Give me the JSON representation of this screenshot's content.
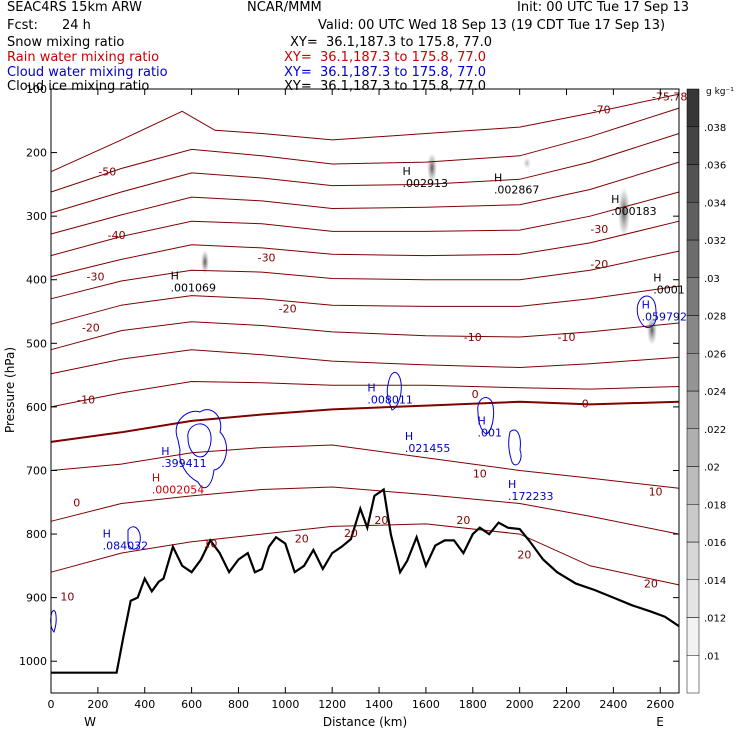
{
  "header": {
    "model": "SEAC4RS 15km ARW",
    "center": "NCAR/MMM",
    "init": "Init: 00 UTC Tue 17 Sep 13",
    "fcst_label": "Fcst:",
    "fcst_value": "24 h",
    "valid": "Valid: 00 UTC Wed 18 Sep 13 (19 CDT Tue 17 Sep 13)",
    "fields": [
      {
        "name": "Snow mixing ratio",
        "xy": "XY=  36.1,187.3 to 175.8, 77.0",
        "color": "#000000"
      },
      {
        "name": "Rain water mixing ratio",
        "xy": "XY=  36.1,187.3 to 175.8, 77.0",
        "color": "#cc0000"
      },
      {
        "name": "Cloud water mixing ratio",
        "xy": "XY=  36.1,187.3 to 175.8, 77.0",
        "color": "#0000cc"
      },
      {
        "name": "Cloud ice mixing ratio",
        "xy": "XY=  36.1,187.3 to 175.8, 77.0",
        "color": "#000000"
      }
    ]
  },
  "chart_data": {
    "type": "cross-section",
    "xlabel": "Distance (km)",
    "ylabel": "Pressure (hPa)",
    "xlim": [
      0,
      2680
    ],
    "ylim": [
      1050,
      100
    ],
    "x_ticks": [
      0,
      200,
      400,
      600,
      800,
      1000,
      1200,
      1400,
      1600,
      1800,
      2000,
      2200,
      2400,
      2600
    ],
    "y_ticks": [
      200,
      300,
      400,
      500,
      600,
      700,
      800,
      900,
      1000
    ],
    "y_label_100": "100",
    "endpoints": {
      "left": "W",
      "right": "E"
    },
    "colorbar": {
      "unit": "g kg⁻¹",
      "ticks": [
        ".01",
        ".012",
        ".014",
        ".016",
        ".018",
        ".02",
        ".022",
        ".024",
        ".026",
        ".028",
        ".03",
        ".032",
        ".034",
        ".036",
        ".038"
      ]
    },
    "terrain": [
      [
        0,
        1018
      ],
      [
        280,
        1018
      ],
      [
        310,
        960
      ],
      [
        340,
        905
      ],
      [
        370,
        900
      ],
      [
        400,
        870
      ],
      [
        430,
        890
      ],
      [
        460,
        875
      ],
      [
        480,
        870
      ],
      [
        520,
        820
      ],
      [
        560,
        850
      ],
      [
        600,
        860
      ],
      [
        640,
        840
      ],
      [
        680,
        810
      ],
      [
        720,
        830
      ],
      [
        760,
        860
      ],
      [
        800,
        840
      ],
      [
        840,
        830
      ],
      [
        870,
        860
      ],
      [
        900,
        855
      ],
      [
        930,
        820
      ],
      [
        960,
        805
      ],
      [
        1000,
        815
      ],
      [
        1040,
        860
      ],
      [
        1080,
        850
      ],
      [
        1120,
        825
      ],
      [
        1160,
        855
      ],
      [
        1200,
        830
      ],
      [
        1240,
        820
      ],
      [
        1280,
        808
      ],
      [
        1320,
        760
      ],
      [
        1350,
        790
      ],
      [
        1380,
        740
      ],
      [
        1420,
        730
      ],
      [
        1450,
        800
      ],
      [
        1490,
        860
      ],
      [
        1520,
        842
      ],
      [
        1560,
        805
      ],
      [
        1600,
        850
      ],
      [
        1640,
        818
      ],
      [
        1680,
        810
      ],
      [
        1720,
        810
      ],
      [
        1760,
        830
      ],
      [
        1800,
        800
      ],
      [
        1830,
        790
      ],
      [
        1870,
        800
      ],
      [
        1910,
        782
      ],
      [
        1950,
        790
      ],
      [
        2000,
        792
      ],
      [
        2040,
        810
      ],
      [
        2100,
        840
      ],
      [
        2160,
        860
      ],
      [
        2240,
        878
      ],
      [
        2320,
        888
      ],
      [
        2400,
        900
      ],
      [
        2480,
        912
      ],
      [
        2560,
        922
      ],
      [
        2620,
        930
      ],
      [
        2680,
        945
      ]
    ],
    "temperature_labels": [
      {
        "x": 2640,
        "p": 112,
        "t": "-75.78"
      },
      {
        "x": 2350,
        "p": 132,
        "t": "-70"
      },
      {
        "x": 240,
        "p": 230,
        "t": "-50"
      },
      {
        "x": 2340,
        "p": 320,
        "t": "-30"
      },
      {
        "x": 280,
        "p": 330,
        "t": "-40"
      },
      {
        "x": 920,
        "p": 365,
        "t": "-30"
      },
      {
        "x": 2340,
        "p": 375,
        "t": "-20"
      },
      {
        "x": 190,
        "p": 395,
        "t": "-30"
      },
      {
        "x": 1010,
        "p": 445,
        "t": "-20"
      },
      {
        "x": 1800,
        "p": 490,
        "t": "-10"
      },
      {
        "x": 2200,
        "p": 490,
        "t": "-10"
      },
      {
        "x": 170,
        "p": 475,
        "t": "-20"
      },
      {
        "x": 150,
        "p": 588,
        "t": "-10"
      },
      {
        "x": 1810,
        "p": 580,
        "t": "0"
      },
      {
        "x": 2280,
        "p": 595,
        "t": "0"
      },
      {
        "x": 110,
        "p": 750,
        "t": "0"
      },
      {
        "x": 1830,
        "p": 705,
        "t": "10"
      },
      {
        "x": 2580,
        "p": 733,
        "t": "10"
      },
      {
        "x": 680,
        "p": 815,
        "t": "10"
      },
      {
        "x": 1070,
        "p": 807,
        "t": "20"
      },
      {
        "x": 1280,
        "p": 798,
        "t": "20"
      },
      {
        "x": 1410,
        "p": 778,
        "t": "20"
      },
      {
        "x": 1760,
        "p": 778,
        "t": "20"
      },
      {
        "x": 2020,
        "p": 832,
        "t": "20"
      },
      {
        "x": 2560,
        "p": 878,
        "t": "20"
      },
      {
        "x": 70,
        "p": 898,
        "t": "10"
      }
    ],
    "maxima": [
      {
        "x": 1560,
        "p": 248,
        "t": ".002913",
        "color": "#000000"
      },
      {
        "x": 1950,
        "p": 258,
        "t": ".002867",
        "color": "#000000"
      },
      {
        "x": 2450,
        "p": 292,
        "t": ".000183",
        "color": "#000000"
      },
      {
        "x": 570,
        "p": 412,
        "t": ".001069",
        "color": "#000000"
      },
      {
        "x": 2630,
        "p": 415,
        "t": ".0001",
        "color": "#000000"
      },
      {
        "x": 2580,
        "p": 458,
        "t": ".059792",
        "color": "#0000cc"
      },
      {
        "x": 1410,
        "p": 588,
        "t": ".008011",
        "color": "#0000cc"
      },
      {
        "x": 1570,
        "p": 665,
        "t": ".021455",
        "color": "#0000cc"
      },
      {
        "x": 1880,
        "p": 640,
        "t": ".001",
        "color": "#0000cc"
      },
      {
        "x": 2010,
        "p": 740,
        "t": ".172233",
        "color": "#0000cc"
      },
      {
        "x": 530,
        "p": 688,
        "t": ".399411",
        "color": "#0000cc"
      },
      {
        "x": 490,
        "p": 730,
        "t": ".0002054",
        "color": "#cc0000"
      },
      {
        "x": 280,
        "p": 818,
        "t": ".084032",
        "color": "#0000cc"
      }
    ]
  }
}
